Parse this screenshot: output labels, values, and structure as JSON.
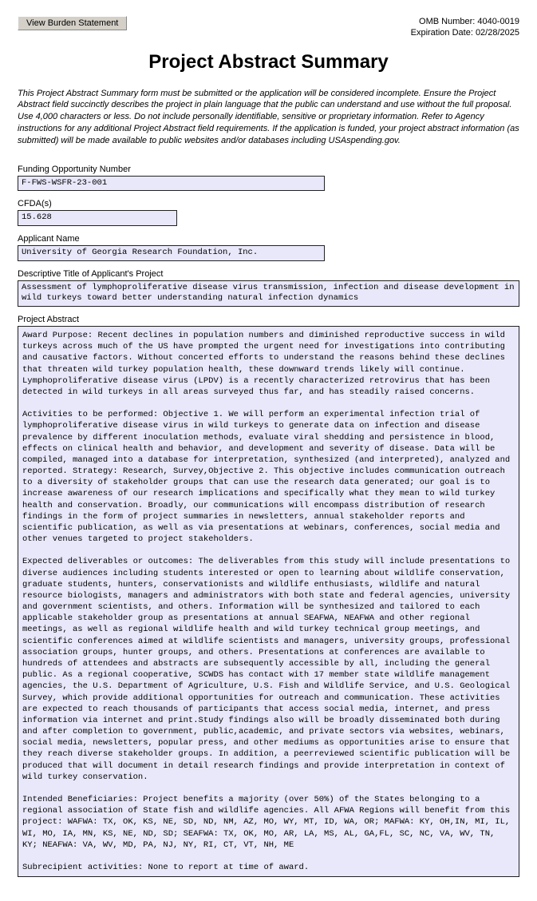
{
  "button": {
    "burden": "View Burden Statement"
  },
  "omb": {
    "number_label": "OMB Number:",
    "number": "4040-0019",
    "exp_label": "Expiration Date:",
    "exp": "02/28/2025"
  },
  "title": "Project Abstract Summary",
  "instructions": "This Project Abstract Summary form  must be submitted or the application will be considered incomplete.   Ensure the Project Abstract field succinctly describes the project in plain language that the public can understand and use without the full proposal.  Use 4,000 characters or less.  Do not include personally identifiable, sensitive or proprietary information.   Refer to Agency instructions for any additional Project Abstract field requirements.   If the application is funded, your project abstract information (as submitted) will be made available to public websites and/or databases including USAspending.gov.",
  "fields": {
    "funding_label": "Funding Opportunity Number",
    "funding_value": "F-FWS-WSFR-23-001",
    "cfda_label": "CFDA(s)",
    "cfda_value": "15.628",
    "applicant_label": "Applicant Name",
    "applicant_value": "University of Georgia Research Foundation, Inc.",
    "descriptive_label": "Descriptive Title of Applicant's Project",
    "descriptive_value": "Assessment of lymphoproliferative disease virus transmission, infection and disease development in wild turkeys toward better understanding natural infection dynamics",
    "abstract_label": "Project Abstract",
    "abstract_value": "Award Purpose: Recent declines in population numbers and diminished reproductive success in wild turkeys across much of the US have prompted the urgent need for investigations into contributing and causative factors. Without concerted efforts to understand the reasons behind these declines that threaten wild turkey population health, these downward trends likely will continue. Lymphoproliferative disease virus (LPDV) is a recently characterized retrovirus that has been detected in wild turkeys in all areas surveyed thus far, and has steadily raised concerns.\n\nActivities to be performed: Objective 1. We will perform an experimental infection trial of lymphoproliferative disease virus in wild turkeys to generate data on infection and disease prevalence by different inoculation methods, evaluate viral shedding and persistence in blood, effects on clinical health and behavior, and development and severity of disease. Data will be compiled, managed into a database for interpretation, synthesized (and interpreted), analyzed and reported. Strategy: Research, Survey,Objective 2. This objective includes communication outreach to a diversity of stakeholder groups that can use the research data generated; our goal is to increase awareness of our research implications and specifically what they mean to wild turkey health and conservation. Broadly, our communications will encompass distribution of research findings in the form of project summaries in newsletters, annual stakeholder reports and scientific publication, as well as via presentations at webinars, conferences, social media and other venues targeted to project stakeholders.\n\nExpected deliverables or outcomes: The deliverables from this study will include presentations to diverse audiences including students interested or open to learning about wildlife conservation, graduate students, hunters, conservationists and wildlife enthusiasts, wildlife and natural resource biologists, managers and administrators with both state and federal agencies, university and government scientists, and others. Information will be synthesized and tailored to each applicable stakeholder group as presentations at annual SEAFWA, NEAFWA and other regional meetings, as well as regional wildlife health and wild turkey technical group meetings, and scientific conferences aimed at wildlife scientists and managers, university groups, professional association groups, hunter groups, and others. Presentations at conferences are available to hundreds of attendees and abstracts are subsequently accessible by all, including the general public. As a regional cooperative, SCWDS has contact with 17 member state wildlife management agencies, the U.S. Department of Agriculture, U.S. Fish and Wildlife Service, and U.S. Geological Survey, which provide additional opportunities for outreach and communication. These activities are expected to reach thousands of participants that access social media, internet, and press information via internet and print.Study findings also will be broadly disseminated both during and after completion to government, public,academic, and private sectors via websites, webinars, social media, newsletters, popular press, and other mediums as opportunities arise to ensure that they reach diverse stakeholder groups. In addition, a peerreviewed scientific publication will be produced that will document in detail research findings and provide interpretation in context of wild turkey conservation.\n\nIntended Beneficiaries: Project benefits a majority (over 50%) of the States belonging to a regional association of State fish and wildlife agencies. All AFWA Regions will benefit from this project: WAFWA: TX, OK, KS, NE, SD, ND, NM, AZ, MO, WY, MT, ID, WA, OR; MAFWA: KY, OH,IN, MI, IL, WI, MO, IA, MN, KS, NE, ND, SD; SEAFWA: TX, OK, MO, AR, LA, MS, AL, GA,FL, SC, NC, VA, WV, TN, KY; NEAFWA: VA, WV, MD, PA, NJ, NY, RI, CT, VT, NH, ME\n\nSubrecipient activities: None to report at time of award."
  }
}
